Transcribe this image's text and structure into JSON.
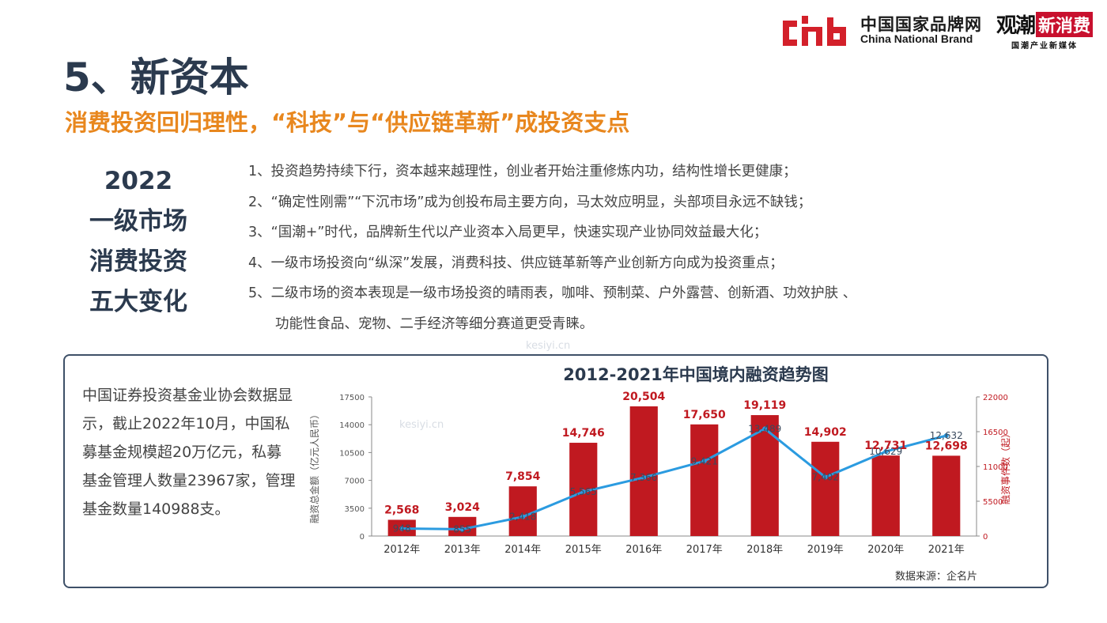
{
  "header": {
    "logo_cnb_cn": "中国国家品牌网",
    "logo_cnb_en": "China National Brand",
    "logo_gc_a": "观潮",
    "logo_gc_b": "新消费",
    "logo_gc_sub": "国潮产业新媒体"
  },
  "title": "5、新资本",
  "subtitle": "消费投资回归理性，“科技”与“供应链革新”成投资支点",
  "side_title": [
    "2022",
    "一级市场",
    "消费投资",
    "五大变化"
  ],
  "points": [
    "1、投资趋势持续下行，资本越来越理性，创业者开始注重修炼内功，结构性增长更健康；",
    "2、“确定性刚需”“下沉市场”成为创投布局主要方向，马太效应明显，头部项目永远不缺钱；",
    "3、“国潮+”时代，品牌新生代以产业资本入局更早，快速实现产业协同效益最大化；",
    "4、一级市场投资向“纵深”发展，消费科技、供应链革新等产业创新方向成为投资重点；",
    "5、二级市场的资本表现是一级市场投资的晴雨表，咖啡、预制菜、户外露营、创新酒、功效护肤 、",
    "功能性食品、宠物、二手经济等细分赛道更受青睐。"
  ],
  "note": "中国证券投资基金业协会数据显示，截止2022年10月，中国私募基金规模超20万亿元，私募基金管理人数量23967家，管理基金数量140988支。",
  "source": "数据来源：企名片",
  "watermark": "kesiyi.cn",
  "colors": {
    "bar": "#c01920",
    "line": "#2b9be0",
    "title": "#2b3a4e",
    "accent": "#e8871e"
  },
  "chart_data": {
    "type": "bar",
    "title": "2012-2021年中国境内融资趋势图",
    "categories": [
      "2012年",
      "2013年",
      "2014年",
      "2015年",
      "2016年",
      "2017年",
      "2018年",
      "2019年",
      "2020年",
      "2021年"
    ],
    "series": [
      {
        "type": "bar",
        "axis": "right",
        "values": [
          2568,
          3024,
          7854,
          14746,
          20504,
          17650,
          19119,
          14902,
          12731,
          12698
        ],
        "labels": [
          "2,568",
          "3,024",
          "7,854",
          "14,746",
          "20,504",
          "17,650",
          "19,119",
          "14,902",
          "12,731",
          "12,698"
        ]
      },
      {
        "type": "line",
        "axis": "left",
        "values": [
          948,
          855,
          2418,
          5565,
          7366,
          9421,
          13489,
          7402,
          10629,
          12632
        ],
        "labels": [
          "948",
          "855",
          "2,418",
          "5,565",
          "7,366",
          "9,421",
          "13,489",
          "7,402",
          "10,629",
          "12,632"
        ]
      }
    ],
    "ylabel_left": "融资总金额（亿元人民币）",
    "ylabel_right": "融资事件数（起）",
    "ylim_left": [
      0,
      17500
    ],
    "yticks_left": [
      "0",
      "3500",
      "7000",
      "10500",
      "14000",
      "17500"
    ],
    "ylim_right": [
      0,
      22000
    ],
    "yticks_right": [
      "0",
      "5500",
      "11000",
      "16500",
      "22000"
    ],
    "grid": false
  }
}
